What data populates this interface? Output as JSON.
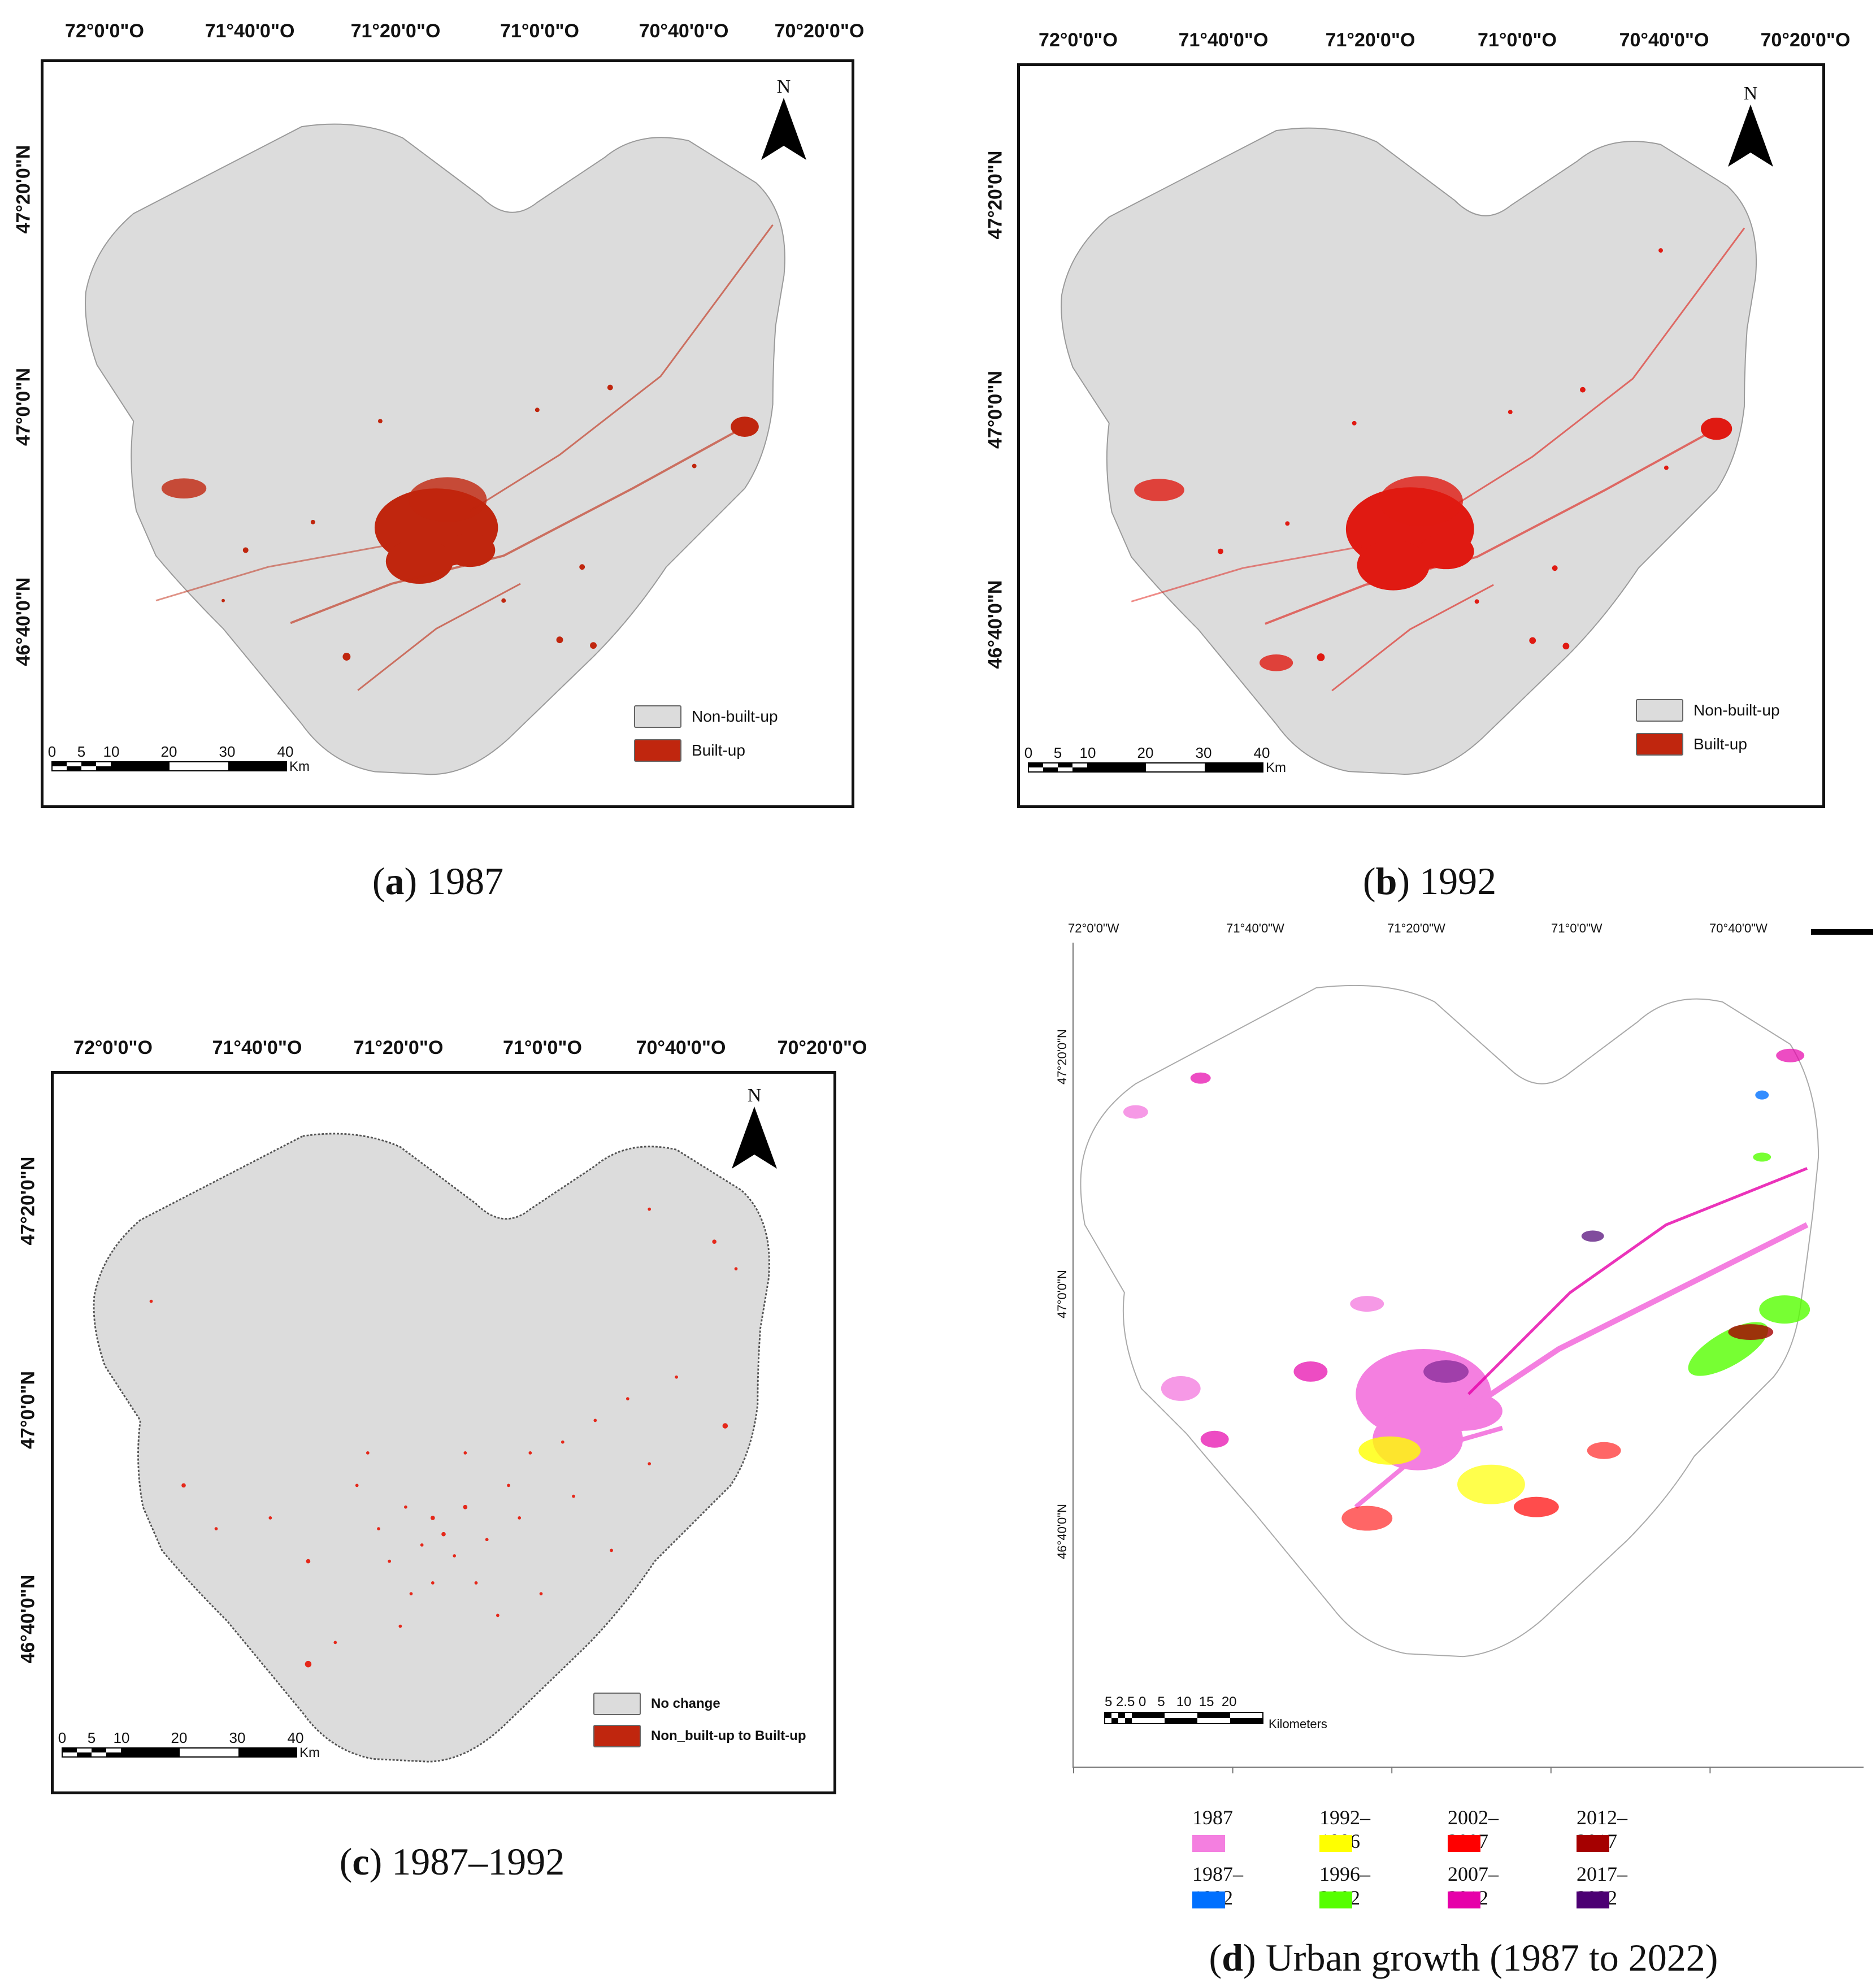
{
  "panels": {
    "a": {
      "caption_letter": "a",
      "caption_text": "1987",
      "lon_labels": [
        "72°0'0\"O",
        "71°40'0\"O",
        "71°20'0\"O",
        "71°0'0\"O",
        "70°40'0\"O",
        "70°20'0\"O"
      ],
      "lat_labels": [
        "47°20'0\"N",
        "47°0'0\"N",
        "46°40'0\"N"
      ],
      "north": "N",
      "legend": [
        {
          "label": "Non-built-up",
          "color": "#dcdcdc"
        },
        {
          "label": "Built-up",
          "color": "#c0260e"
        }
      ],
      "scale_labels": [
        "0",
        "5",
        "10",
        "20",
        "30",
        "40"
      ],
      "scale_unit": "Km"
    },
    "b": {
      "caption_letter": "b",
      "caption_text": "1992",
      "lon_labels": [
        "72°0'0\"O",
        "71°40'0\"O",
        "71°20'0\"O",
        "71°0'0\"O",
        "70°40'0\"O",
        "70°20'0\"O"
      ],
      "lat_labels": [
        "47°20'0\"N",
        "47°0'0\"N",
        "46°40'0\"N"
      ],
      "north": "N",
      "legend": [
        {
          "label": "Non-built-up",
          "color": "#dcdcdc"
        },
        {
          "label": "Built-up",
          "color": "#c0260e"
        }
      ],
      "scale_labels": [
        "0",
        "5",
        "10",
        "20",
        "30",
        "40"
      ],
      "scale_unit": "Km"
    },
    "c": {
      "caption_letter": "c",
      "caption_text": "1987–1992",
      "lon_labels": [
        "72°0'0\"O",
        "71°40'0\"O",
        "71°20'0\"O",
        "71°0'0\"O",
        "70°40'0\"O",
        "70°20'0\"O"
      ],
      "lat_labels": [
        "47°20'0\"N",
        "47°0'0\"N",
        "46°40'0\"N"
      ],
      "north": "N",
      "legend": [
        {
          "label": "No change",
          "color": "#dcdcdc"
        },
        {
          "label": "Non_built-up to Built-up",
          "color": "#c0260e"
        }
      ],
      "scale_labels": [
        "0",
        "5",
        "10",
        "20",
        "30",
        "40"
      ],
      "scale_unit": "Km"
    },
    "d": {
      "caption_letter": "d",
      "caption_text": "Urban growth (1987 to 2022)",
      "lon_labels": [
        "72°0'0\"W",
        "71°40'0\"W",
        "71°20'0\"W",
        "71°0'0\"W",
        "70°40'0\"W"
      ],
      "lat_labels": [
        "47°20'0\"N",
        "47°0'0\"N",
        "46°40'0\"N"
      ],
      "scale_labels": "5 2.5 0   5   10  15  20",
      "scale_unit": "Kilometers",
      "legend": [
        {
          "label": "1987",
          "color": "#f47fe0"
        },
        {
          "label": "1992–1996",
          "color": "#ffff00"
        },
        {
          "label": "2002–2007",
          "color": "#ff0000"
        },
        {
          "label": "2012–2017",
          "color": "#a50000"
        },
        {
          "label": "1987–1992",
          "color": "#0070ff"
        },
        {
          "label": "1996–2002",
          "color": "#55ff00"
        },
        {
          "label": "2007–2012",
          "color": "#e600a9"
        },
        {
          "label": "2017–2022",
          "color": "#4c0073"
        }
      ]
    }
  }
}
